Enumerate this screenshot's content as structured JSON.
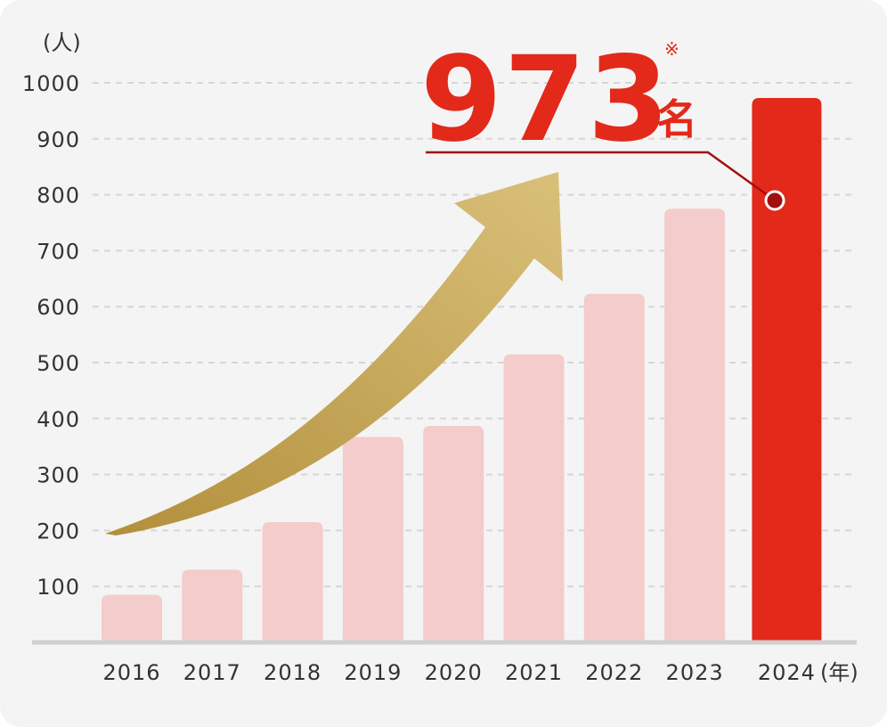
{
  "chart_data": {
    "type": "bar",
    "y_unit": "(人)",
    "x_unit": "(年)",
    "categories": [
      "2016",
      "2017",
      "2018",
      "2019",
      "2020",
      "2021",
      "2022",
      "2023",
      "2024"
    ],
    "values": [
      85,
      130,
      215,
      367,
      387,
      515,
      623,
      775,
      973
    ],
    "yticks": [
      100,
      200,
      300,
      400,
      500,
      600,
      700,
      800,
      900,
      1000
    ],
    "ylim": [
      0,
      1000
    ],
    "grid": true,
    "highlight": {
      "category": "2024",
      "value_text": "973",
      "suffix": "名",
      "note_mark": "※"
    },
    "colors": {
      "bar": "#f4cccb",
      "highlight_bar": "#e2291a",
      "highlight_text": "#e2291a",
      "callout_line": "#a01010",
      "arrow_light": "#d9c079",
      "arrow_dark": "#b28f3c",
      "grid": "#d6d6d6",
      "axis": "#d0d0d0"
    }
  }
}
